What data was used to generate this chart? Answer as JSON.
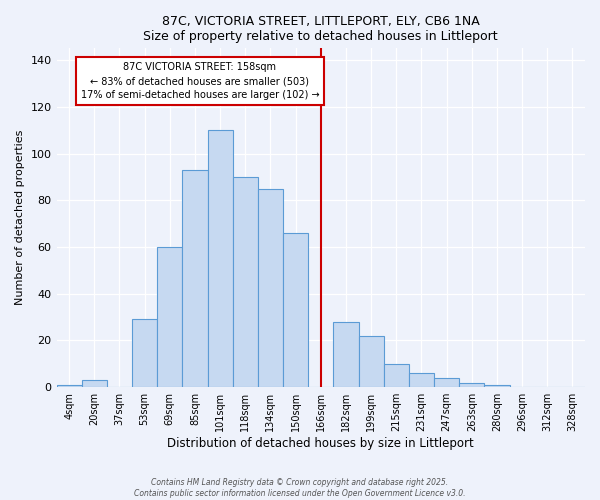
{
  "title": "87C, VICTORIA STREET, LITTLEPORT, ELY, CB6 1NA",
  "subtitle": "Size of property relative to detached houses in Littleport",
  "xlabel": "Distribution of detached houses by size in Littleport",
  "ylabel": "Number of detached properties",
  "bar_labels": [
    "4sqm",
    "20sqm",
    "37sqm",
    "53sqm",
    "69sqm",
    "85sqm",
    "101sqm",
    "118sqm",
    "134sqm",
    "150sqm",
    "166sqm",
    "182sqm",
    "199sqm",
    "215sqm",
    "231sqm",
    "247sqm",
    "263sqm",
    "280sqm",
    "296sqm",
    "312sqm",
    "328sqm"
  ],
  "bar_heights": [
    1,
    3,
    0,
    29,
    60,
    93,
    110,
    90,
    85,
    66,
    0,
    28,
    22,
    10,
    6,
    4,
    2,
    1,
    0,
    0,
    0
  ],
  "bar_color": "#c6d9f1",
  "bar_edge_color": "#5b9bd5",
  "vline_x": 10.0,
  "vline_color": "#cc0000",
  "annotation_title": "87C VICTORIA STREET: 158sqm",
  "annotation_line1": "← 83% of detached houses are smaller (503)",
  "annotation_line2": "17% of semi-detached houses are larger (102) →",
  "annotation_box_color": "#cc0000",
  "ylim": [
    0,
    145
  ],
  "yticks": [
    0,
    20,
    40,
    60,
    80,
    100,
    120,
    140
  ],
  "footer1": "Contains HM Land Registry data © Crown copyright and database right 2025.",
  "footer2": "Contains public sector information licensed under the Open Government Licence v3.0.",
  "bg_color": "#eef2fb",
  "plot_bg_color": "#eef2fb"
}
